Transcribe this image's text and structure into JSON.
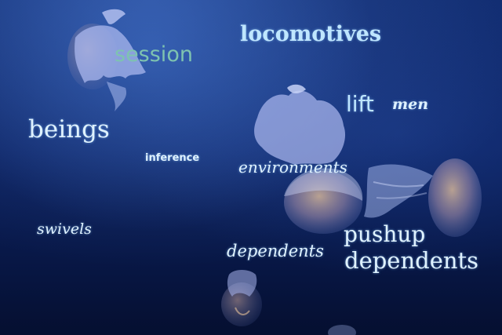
{
  "scene": {
    "subject": "jellyfish-photo",
    "colors": {
      "background_top": "#0f2a6e",
      "background_bottom": "#050f30",
      "jelly_body": "#9fb0e6",
      "jelly_glow": "#d9b890"
    }
  },
  "words": {
    "session": "session",
    "locomotives": "locomotives",
    "lift": "lift",
    "men": "men",
    "beings": "beings",
    "inference": "inference",
    "environments": "environments",
    "swivels": "swivels",
    "pushup": "pushup",
    "dependents_script": "dependents",
    "dependents_big": "dependents"
  }
}
